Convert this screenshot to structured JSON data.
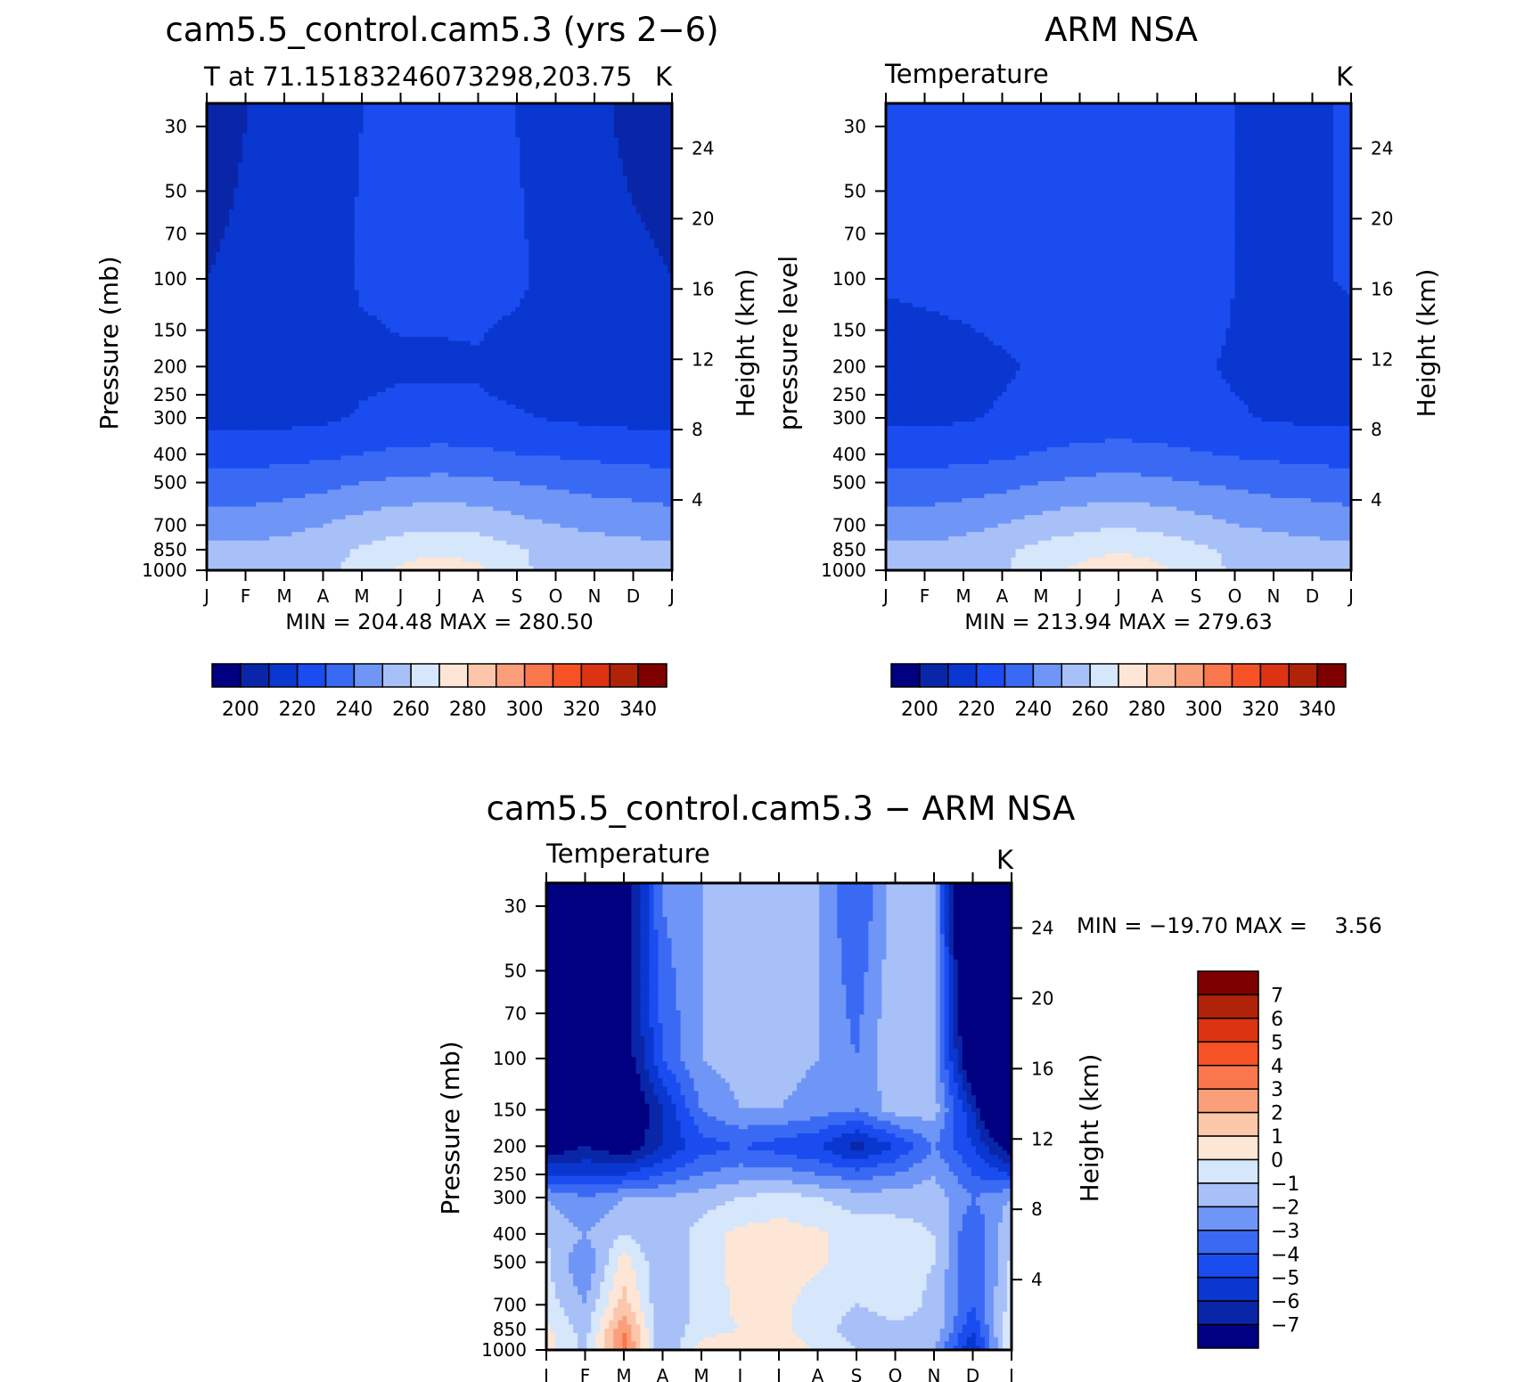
{
  "chart_data": [
    {
      "type": "heatmap",
      "title": "cam5.5_control.cam5.3 (yrs 2−6)",
      "subtitle_left": "T at 71.15183246073298,203.75",
      "subtitle_right": "K",
      "ylabel": "Pressure (mb)",
      "ylabel_right": "Height (km)",
      "x_ticklabels": [
        "J",
        "F",
        "M",
        "A",
        "M",
        "J",
        "J",
        "A",
        "S",
        "O",
        "N",
        "D",
        "J"
      ],
      "y_ticks": [
        30,
        50,
        70,
        100,
        150,
        200,
        250,
        300,
        400,
        500,
        700,
        850,
        1000
      ],
      "y_ticklabels": [
        "30",
        "50",
        "70",
        "100",
        "150",
        "200",
        "250",
        "300",
        "400",
        "500",
        "700",
        "850",
        "1000"
      ],
      "height_ticks": [
        4,
        8,
        12,
        16,
        20,
        24
      ],
      "height_ticklabels": [
        "4",
        "8",
        "12",
        "16",
        "20",
        "24"
      ],
      "ylim": [
        1000,
        25
      ],
      "minmax_text": "MIN = 204.48 MAX = 280.50",
      "min": 204.48,
      "max": 280.5,
      "colorbar_labels": [
        "200",
        "220",
        "240",
        "260",
        "280",
        "300",
        "320",
        "340"
      ],
      "levels": [
        190,
        200,
        210,
        220,
        230,
        240,
        250,
        260,
        270,
        280,
        290,
        300,
        310,
        320,
        330,
        340,
        350
      ],
      "values_by_pressure": [
        {
          "p": 30,
          "row": [
            206,
            210,
            212,
            218,
            220,
            220,
            220,
            220,
            220,
            214,
            212,
            208,
            206
          ]
        },
        {
          "p": 100,
          "row": [
            210,
            212,
            214,
            216,
            221,
            222,
            222,
            223,
            222,
            216,
            214,
            212,
            210
          ]
        },
        {
          "p": 200,
          "row": [
            214,
            214,
            214,
            216,
            218,
            219,
            219,
            219,
            216,
            215,
            214,
            214,
            214
          ]
        },
        {
          "p": 300,
          "row": [
            217,
            217,
            217,
            218,
            221,
            222,
            222,
            222,
            221,
            219,
            218,
            217,
            217
          ]
        },
        {
          "p": 400,
          "row": [
            226,
            226,
            227,
            228,
            230,
            232,
            233,
            232,
            230,
            229,
            228,
            227,
            226
          ]
        },
        {
          "p": 500,
          "row": [
            234,
            234,
            235,
            237,
            240,
            242,
            243,
            242,
            240,
            238,
            236,
            235,
            234
          ]
        },
        {
          "p": 700,
          "row": [
            245,
            245,
            247,
            250,
            254,
            257,
            258,
            257,
            253,
            250,
            248,
            247,
            245
          ]
        },
        {
          "p": 850,
          "row": [
            252,
            252,
            254,
            257,
            261,
            265,
            267,
            266,
            261,
            257,
            254,
            253,
            252
          ]
        },
        {
          "p": 1000,
          "row": [
            253,
            253,
            255,
            258,
            263,
            272,
            277,
            272,
            262,
            257,
            253,
            251,
            253
          ]
        }
      ]
    },
    {
      "type": "heatmap",
      "title": "ARM NSA",
      "subtitle_left": "Temperature",
      "subtitle_right": "K",
      "ylabel": "pressure level",
      "ylabel_right": "Height (km)",
      "x_ticklabels": [
        "J",
        "F",
        "M",
        "A",
        "M",
        "J",
        "J",
        "A",
        "S",
        "O",
        "N",
        "D",
        "J"
      ],
      "y_ticks": [
        30,
        50,
        70,
        100,
        150,
        200,
        250,
        300,
        400,
        500,
        700,
        850,
        1000
      ],
      "y_ticklabels": [
        "30",
        "50",
        "70",
        "100",
        "150",
        "200",
        "250",
        "300",
        "400",
        "500",
        "700",
        "850",
        "1000"
      ],
      "height_ticks": [
        4,
        8,
        12,
        16,
        20,
        24
      ],
      "height_ticklabels": [
        "4",
        "8",
        "12",
        "16",
        "20",
        "24"
      ],
      "ylim": [
        1000,
        25
      ],
      "minmax_text": "MIN = 213.94 MAX = 279.63",
      "min": 213.94,
      "max": 279.63,
      "colorbar_labels": [
        "200",
        "220",
        "240",
        "260",
        "280",
        "300",
        "320",
        "340"
      ],
      "levels": [
        190,
        200,
        210,
        220,
        230,
        240,
        250,
        260,
        270,
        280,
        290,
        300,
        310,
        320,
        330,
        340,
        350
      ],
      "values_by_pressure": [
        {
          "p": 30,
          "row": [
            221,
            222,
            223,
            224,
            225,
            226,
            228,
            226,
            225,
            220,
            219,
            219,
            221
          ]
        },
        {
          "p": 100,
          "row": [
            221,
            222,
            223,
            224,
            225,
            226,
            227,
            226,
            225,
            220,
            218,
            219,
            221
          ]
        },
        {
          "p": 200,
          "row": [
            216,
            216,
            217,
            219,
            221,
            222,
            223,
            222,
            221,
            219,
            218,
            217,
            216
          ]
        },
        {
          "p": 300,
          "row": [
            218,
            218,
            219,
            221,
            222,
            223,
            224,
            223,
            222,
            221,
            219,
            218,
            218
          ]
        },
        {
          "p": 400,
          "row": [
            226,
            226,
            227,
            228,
            231,
            233,
            234,
            233,
            231,
            229,
            228,
            227,
            226
          ]
        },
        {
          "p": 500,
          "row": [
            234,
            234,
            235,
            237,
            240,
            242,
            243,
            242,
            240,
            238,
            236,
            235,
            234
          ]
        },
        {
          "p": 700,
          "row": [
            245,
            245,
            247,
            250,
            254,
            257,
            259,
            257,
            254,
            250,
            248,
            247,
            245
          ]
        },
        {
          "p": 850,
          "row": [
            252,
            252,
            254,
            258,
            263,
            267,
            269,
            267,
            262,
            258,
            255,
            253,
            252
          ]
        },
        {
          "p": 1000,
          "row": [
            253,
            253,
            255,
            259,
            265,
            272,
            276,
            272,
            266,
            258,
            254,
            253,
            253
          ]
        }
      ]
    },
    {
      "type": "heatmap",
      "title": "cam5.5_control.cam5.3 − ARM NSA",
      "subtitle_left": "Temperature",
      "subtitle_right": "K",
      "ylabel": "Pressure (mb)",
      "ylabel_right": "Height (km)",
      "x_ticklabels": [
        "J",
        "F",
        "M",
        "A",
        "M",
        "J",
        "J",
        "A",
        "S",
        "O",
        "N",
        "D",
        "J"
      ],
      "y_ticks": [
        30,
        50,
        70,
        100,
        150,
        200,
        250,
        300,
        400,
        500,
        700,
        850,
        1000
      ],
      "y_ticklabels": [
        "30",
        "50",
        "70",
        "100",
        "150",
        "200",
        "250",
        "300",
        "400",
        "500",
        "700",
        "850",
        "1000"
      ],
      "height_ticks": [
        4,
        8,
        12,
        16,
        20,
        24
      ],
      "height_ticklabels": [
        "4",
        "8",
        "12",
        "16",
        "20",
        "24"
      ],
      "ylim": [
        1000,
        25
      ],
      "minmax_text": "MIN = −19.70 MAX =    3.56",
      "min": -19.7,
      "max": 3.56,
      "colorbar_labels": [
        "7",
        "6",
        "5",
        "4",
        "3",
        "2",
        "1",
        "0",
        "−1",
        "−2",
        "−3",
        "−4",
        "−5",
        "−6",
        "−7"
      ],
      "levels": [
        -8,
        -7,
        -6,
        -5,
        -4,
        -3,
        -2,
        -1,
        0,
        1,
        2,
        3,
        4,
        5,
        6,
        7,
        8
      ],
      "values_by_pressure": [
        {
          "p": 30,
          "row": [
            -15,
            -12,
            -8,
            -3,
            -2,
            -1.5,
            -1.5,
            -2,
            -4,
            -1.5,
            -2,
            -12,
            -15
          ]
        },
        {
          "p": 100,
          "row": [
            -13,
            -11,
            -8,
            -4,
            -2,
            -1.5,
            -1.5,
            -2,
            -3,
            -1,
            -2,
            -9,
            -13
          ]
        },
        {
          "p": 150,
          "row": [
            -12,
            -10,
            -9,
            -6,
            -3,
            -2,
            -2,
            -2.5,
            -3,
            -1.5,
            -1.5,
            -6,
            -12
          ]
        },
        {
          "p": 200,
          "row": [
            -8,
            -7,
            -8,
            -6,
            -4.5,
            -4,
            -4.5,
            -5,
            -6.5,
            -5,
            -3,
            -5,
            -8
          ]
        },
        {
          "p": 250,
          "row": [
            -5,
            -5,
            -5,
            -4,
            -3,
            -2.5,
            -2.5,
            -3,
            -3.5,
            -3,
            -2,
            -4,
            -5
          ]
        },
        {
          "p": 300,
          "row": [
            -2,
            -3,
            -2,
            -2,
            -1.5,
            -1,
            -0.5,
            -1,
            -1.5,
            -1.5,
            -1.5,
            -3,
            -2
          ]
        },
        {
          "p": 400,
          "row": [
            -1,
            -2,
            -1,
            -2,
            -0.5,
            0.3,
            0.4,
            0.2,
            -0.5,
            -0.5,
            -1,
            -4,
            -1
          ]
        },
        {
          "p": 500,
          "row": [
            -0.8,
            -3,
            0.5,
            -2,
            -0.5,
            0.3,
            0.5,
            0.2,
            -0.5,
            -0.6,
            -1,
            -4,
            -0.8
          ]
        },
        {
          "p": 700,
          "row": [
            -0.5,
            -2,
            1.5,
            -2,
            -0.5,
            0.2,
            0.3,
            -0.5,
            -1,
            -0.6,
            -1.2,
            -4,
            -0.5
          ]
        },
        {
          "p": 850,
          "row": [
            0.3,
            -1.5,
            3,
            -2,
            -0.4,
            0,
            0.2,
            -0.5,
            -1.5,
            -1.2,
            -1.2,
            -5,
            0.3
          ]
        },
        {
          "p": 1000,
          "row": [
            0.3,
            -1.2,
            3.5,
            -2,
            0.5,
            1,
            0.8,
            -0.2,
            -1,
            -1.5,
            -2,
            -6,
            0.3
          ]
        }
      ]
    }
  ],
  "colors": {
    "temp_palette": [
      "#000080",
      "#0a26a8",
      "#0a37d0",
      "#1a4cf0",
      "#3a6af4",
      "#6f96f6",
      "#a8c0f8",
      "#d6e6fb",
      "#fde6d6",
      "#fcc6aa",
      "#fb9f7a",
      "#fa774d",
      "#f65226",
      "#dc3412",
      "#b02308",
      "#7e0000"
    ],
    "diff_palette": [
      "#000080",
      "#0a26a8",
      "#0a37d0",
      "#1a4cf0",
      "#3a6af4",
      "#6f96f6",
      "#a8c0f8",
      "#d6e6fb",
      "#fde6d6",
      "#fcc6aa",
      "#fb9f7a",
      "#fa774d",
      "#f65226",
      "#dc3412",
      "#b02308",
      "#7e0000"
    ]
  }
}
